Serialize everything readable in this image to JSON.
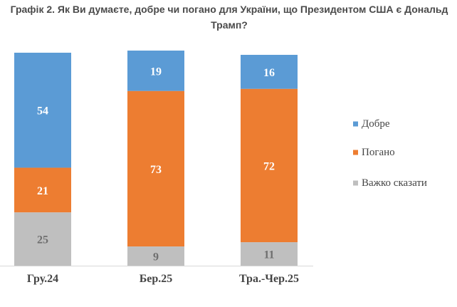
{
  "chart_data": {
    "type": "bar",
    "stacked": true,
    "title": "Графік 2. Як Ви думаєте, добре чи погано для України, що Президентом США є Дональд Трамп?",
    "categories": [
      "Гру.24",
      "Бер.25",
      "Тра.-Чер.25"
    ],
    "series": [
      {
        "name": "Добре",
        "color": "#5b9bd5",
        "label_color": "#ffffff",
        "values": [
          54,
          19,
          16
        ]
      },
      {
        "name": "Погано",
        "color": "#ed7d31",
        "label_color": "#ffffff",
        "values": [
          21,
          73,
          72
        ]
      },
      {
        "name": "Важко сказати",
        "color": "#bfbfbf",
        "label_color": "#6e6e6e",
        "values": [
          25,
          9,
          11
        ]
      }
    ],
    "ylim": [
      0,
      100
    ],
    "legend_position": "right",
    "grid": false
  }
}
